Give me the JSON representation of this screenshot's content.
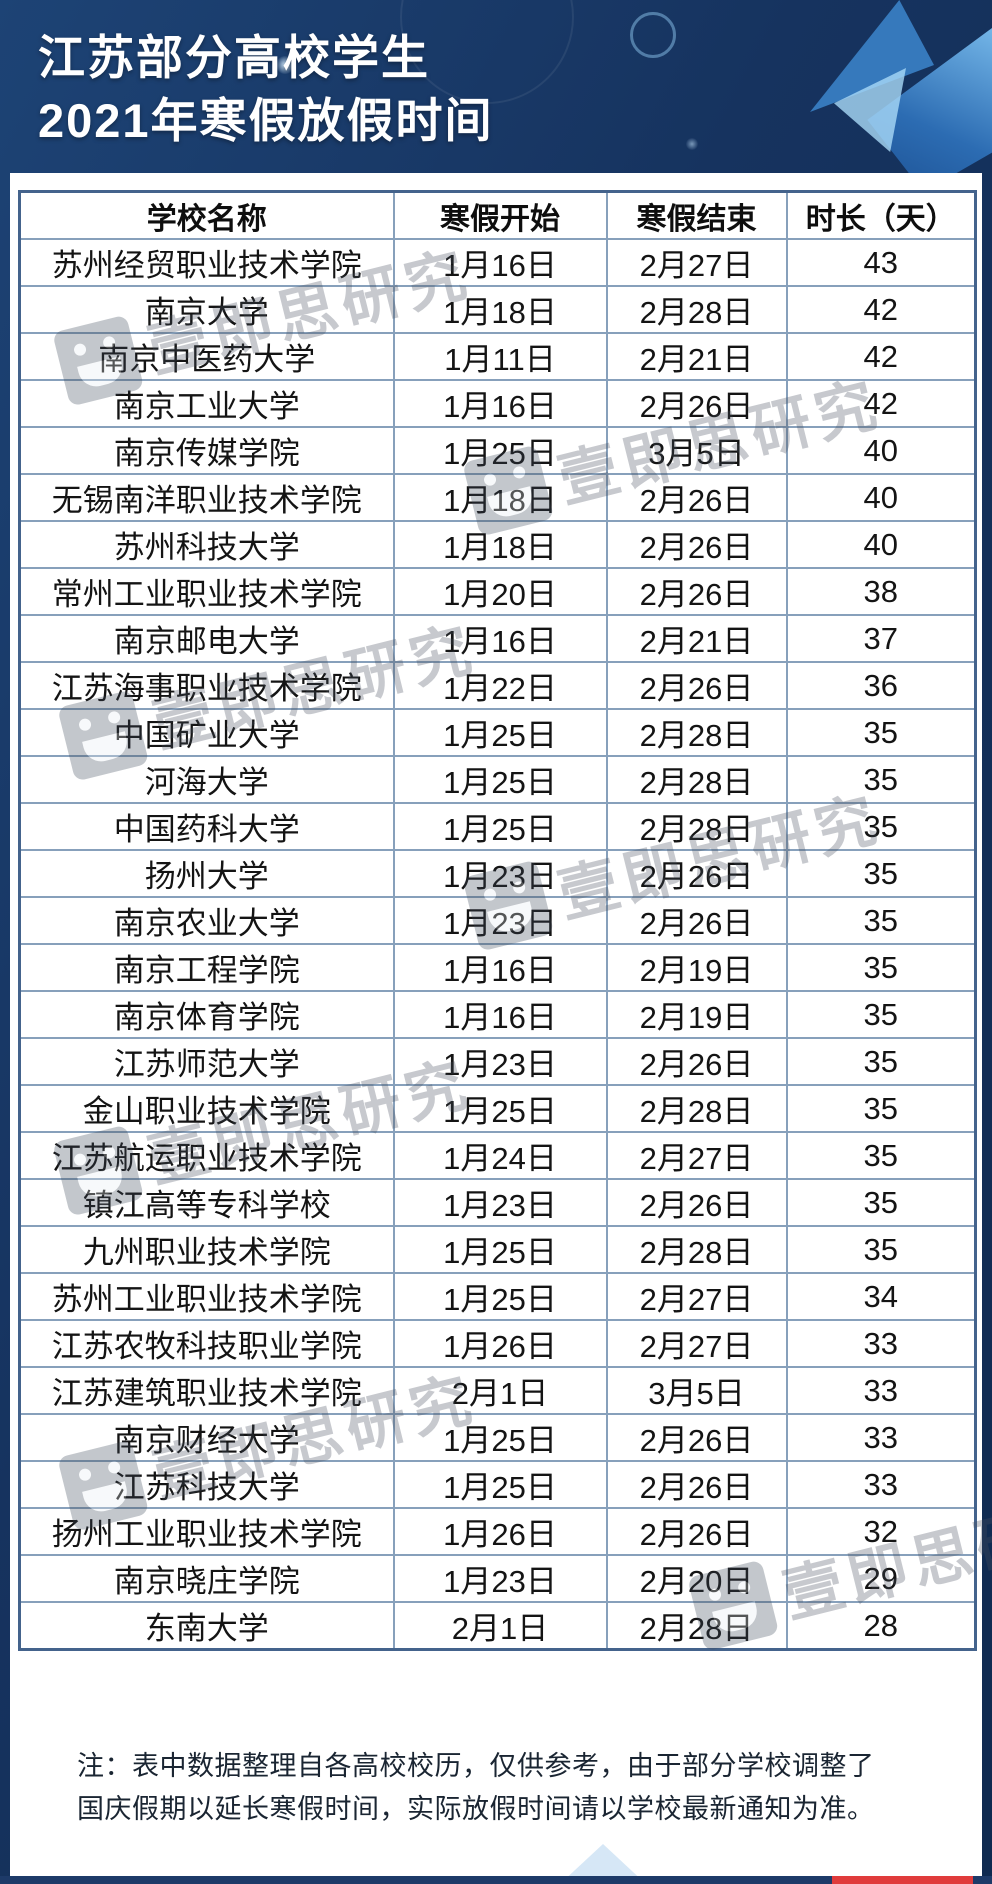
{
  "page": {
    "title_line1": "江苏部分高校学生",
    "title_line2": "2021年寒假放假时间"
  },
  "chart_data": {
    "type": "table",
    "title": "江苏部分高校学生2021年寒假放假时间",
    "columns": [
      "学校名称",
      "寒假开始",
      "寒假结束",
      "时长（天）"
    ],
    "rows": [
      [
        "苏州经贸职业技术学院",
        "1月16日",
        "2月27日",
        "43"
      ],
      [
        "南京大学",
        "1月18日",
        "2月28日",
        "42"
      ],
      [
        "南京中医药大学",
        "1月11日",
        "2月21日",
        "42"
      ],
      [
        "南京工业大学",
        "1月16日",
        "2月26日",
        "42"
      ],
      [
        "南京传媒学院",
        "1月25日",
        "3月5日",
        "40"
      ],
      [
        "无锡南洋职业技术学院",
        "1月18日",
        "2月26日",
        "40"
      ],
      [
        "苏州科技大学",
        "1月18日",
        "2月26日",
        "40"
      ],
      [
        "常州工业职业技术学院",
        "1月20日",
        "2月26日",
        "38"
      ],
      [
        "南京邮电大学",
        "1月16日",
        "2月21日",
        "37"
      ],
      [
        "江苏海事职业技术学院",
        "1月22日",
        "2月26日",
        "36"
      ],
      [
        "中国矿业大学",
        "1月25日",
        "2月28日",
        "35"
      ],
      [
        "河海大学",
        "1月25日",
        "2月28日",
        "35"
      ],
      [
        "中国药科大学",
        "1月25日",
        "2月28日",
        "35"
      ],
      [
        "扬州大学",
        "1月23日",
        "2月26日",
        "35"
      ],
      [
        "南京农业大学",
        "1月23日",
        "2月26日",
        "35"
      ],
      [
        "南京工程学院",
        "1月16日",
        "2月19日",
        "35"
      ],
      [
        "南京体育学院",
        "1月16日",
        "2月19日",
        "35"
      ],
      [
        "江苏师范大学",
        "1月23日",
        "2月26日",
        "35"
      ],
      [
        "金山职业技术学院",
        "1月25日",
        "2月28日",
        "35"
      ],
      [
        "江苏航运职业技术学院",
        "1月24日",
        "2月27日",
        "35"
      ],
      [
        "镇江高等专科学校",
        "1月23日",
        "2月26日",
        "35"
      ],
      [
        "九州职业技术学院",
        "1月25日",
        "2月28日",
        "35"
      ],
      [
        "苏州工业职业技术学院",
        "1月25日",
        "2月27日",
        "34"
      ],
      [
        "江苏农牧科技职业学院",
        "1月26日",
        "2月27日",
        "33"
      ],
      [
        "江苏建筑职业技术学院",
        "2月1日",
        "3月5日",
        "33"
      ],
      [
        "南京财经大学",
        "1月25日",
        "2月26日",
        "33"
      ],
      [
        "江苏科技大学",
        "1月25日",
        "2月26日",
        "33"
      ],
      [
        "扬州工业职业技术学院",
        "1月26日",
        "2月26日",
        "32"
      ],
      [
        "南京晓庄学院",
        "1月23日",
        "2月20日",
        "29"
      ],
      [
        "东南大学",
        "2月1日",
        "2月28日",
        "28"
      ]
    ]
  },
  "footnote": {
    "line1": "注：表中数据整理自各高校校历，仅供参考，由于部分学校调整了",
    "line2": "国庆假期以延长寒假时间，实际放假时间请以学校最新通知为准。"
  },
  "watermark": {
    "text": "壹即思研究"
  },
  "colors": {
    "background": "#16335f",
    "panel": "#ffffff",
    "table_outer_border": "#44638c",
    "grid_line": "#87a0bb",
    "cell_text": "#141414",
    "title_text": "#ffffff",
    "bottom_bar": "#1d3a68",
    "accent_red": "#e03b3b"
  }
}
